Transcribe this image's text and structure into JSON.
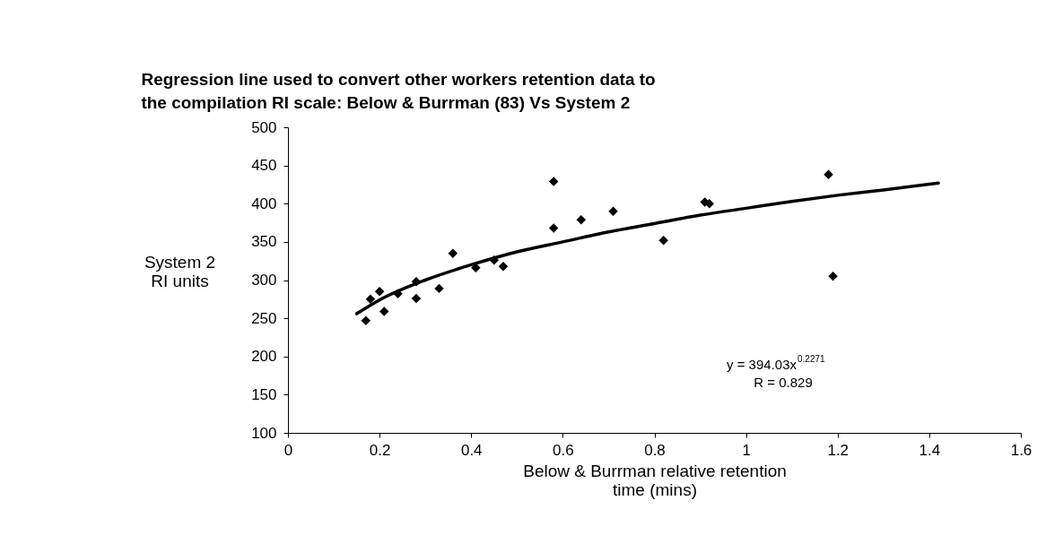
{
  "chart_data": {
    "type": "scatter",
    "title": "Regression line used to convert other workers retention data to the compilation RI scale: Below & Burrman (83) Vs System 2",
    "xlabel": "Below & Burrman relative retention time (mins)",
    "ylabel": "System 2 RI units",
    "xlim": [
      0,
      1.6
    ],
    "xticks": [
      0,
      0.2,
      0.4,
      0.6,
      0.8,
      1,
      1.2,
      1.4,
      1.6
    ],
    "ylim": [
      100,
      500
    ],
    "yticks": [
      100,
      150,
      200,
      250,
      300,
      350,
      400,
      450,
      500
    ],
    "grid": false,
    "marker": "diamond",
    "annotations": [
      "y = 394.03x$^{0.2271}$",
      "R = 0.829"
    ],
    "series": [
      {
        "color": "#000000",
        "x": [
          0.17,
          0.18,
          0.2,
          0.21,
          0.24,
          0.28,
          0.28,
          0.33,
          0.36,
          0.41,
          0.45,
          0.47,
          0.58,
          0.58,
          0.64,
          0.71,
          0.82,
          0.91,
          0.92,
          1.18,
          1.19
        ],
        "values": [
          247,
          275,
          285,
          259,
          282,
          298,
          276,
          289,
          335,
          316,
          326,
          318,
          429,
          368,
          379,
          390,
          352,
          402,
          400,
          438,
          305
        ]
      },
      {
        "type": "line",
        "color": "#000000",
        "line_style": "solid",
        "marker": "none",
        "x": [
          0.15,
          0.2,
          0.3,
          0.4,
          0.5,
          0.6,
          0.7,
          0.8,
          0.9,
          1.0,
          1.1,
          1.2,
          1.3,
          1.42
        ],
        "values": [
          256,
          274,
          300,
          320,
          337,
          350,
          363,
          374,
          385,
          394,
          403,
          411,
          418,
          427
        ]
      }
    ]
  }
}
